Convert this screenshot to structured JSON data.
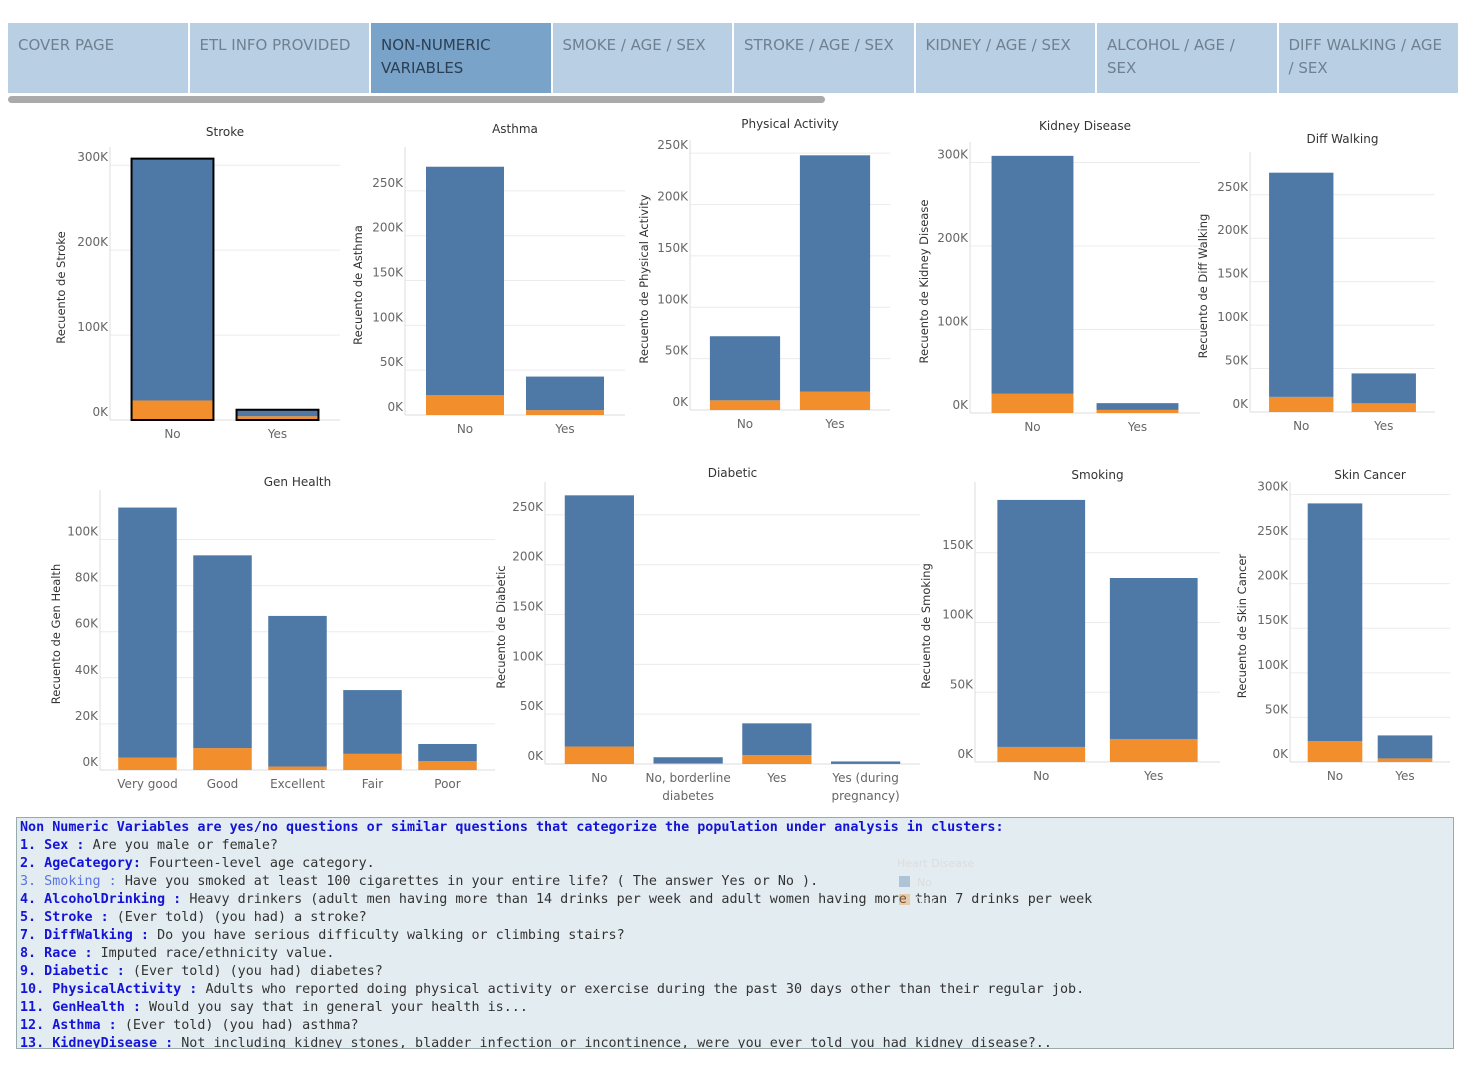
{
  "tabs": [
    "COVER PAGE",
    "ETL INFO PROVIDED",
    "NON-NUMERIC VARIABLES",
    "SMOKE / AGE / SEX",
    "STROKE / AGE / SEX",
    "KIDNEY / AGE / SEX",
    "ALCOHOL / AGE / SEX",
    "DIFF WALKING / AGE / SEX"
  ],
  "active_tab": 2,
  "legend": {
    "title": "Heart Disease",
    "entries": [
      {
        "name": "No",
        "color": "#4e79a7"
      },
      {
        "name": "Yes",
        "color": "#f28e2b"
      }
    ]
  },
  "chart_data": [
    {
      "type": "bar",
      "stacked": true,
      "highlight": true,
      "title": "Stroke",
      "ylabel": "Recuento de Stroke",
      "categories": [
        "No",
        "Yes"
      ],
      "series": [
        {
          "values": [
            284742,
            7680
          ]
        },
        {
          "values": [
            22984,
            4389
          ]
        }
      ],
      "ylim": [
        0,
        312000
      ],
      "yticks": [
        {
          "value": 0,
          "label": "0K"
        },
        {
          "value": 100000,
          "label": "100K"
        },
        {
          "value": 200000,
          "label": "200K"
        },
        {
          "value": 300000,
          "label": "300K"
        }
      ],
      "grid": true
    },
    {
      "type": "bar",
      "stacked": true,
      "title": "Asthma",
      "ylabel": "Recuento de Asthma",
      "categories": [
        "No",
        "Yes"
      ],
      "series": [
        {
          "values": [
            254923,
            37472
          ]
        },
        {
          "values": [
            22000,
            5400
          ]
        }
      ],
      "ylim": [
        0,
        290000
      ],
      "yticks": [
        {
          "value": 0,
          "label": "0K"
        },
        {
          "value": 50000,
          "label": "50K"
        },
        {
          "value": 100000,
          "label": "100K"
        },
        {
          "value": 150000,
          "label": "150K"
        },
        {
          "value": 200000,
          "label": "200K"
        },
        {
          "value": 250000,
          "label": "250K"
        }
      ],
      "grid": true
    },
    {
      "type": "bar",
      "stacked": true,
      "title": "Physical Activity",
      "ylabel": "Recuento de Physical Activity",
      "categories": [
        "No",
        "Yes"
      ],
      "series": [
        {
          "values": [
            62400,
            229900
          ]
        },
        {
          "values": [
            9400,
            18000
          ]
        }
      ],
      "ylim": [
        0,
        255000
      ],
      "yticks": [
        {
          "value": 0,
          "label": "0K"
        },
        {
          "value": 50000,
          "label": "50K"
        },
        {
          "value": 100000,
          "label": "100K"
        },
        {
          "value": 150000,
          "label": "150K"
        },
        {
          "value": 200000,
          "label": "200K"
        },
        {
          "value": 250000,
          "label": "250K"
        }
      ],
      "grid": true
    },
    {
      "type": "bar",
      "stacked": true,
      "title": "Kidney Disease",
      "ylabel": "Recuento de Kidney Disease",
      "categories": [
        "No",
        "Yes"
      ],
      "series": [
        {
          "values": [
            285000,
            8100
          ]
        },
        {
          "values": [
            23000,
            3700
          ]
        }
      ],
      "ylim": [
        0,
        315000
      ],
      "yticks": [
        {
          "value": 0,
          "label": "0K"
        },
        {
          "value": 100000,
          "label": "100K"
        },
        {
          "value": 200000,
          "label": "200K"
        },
        {
          "value": 300000,
          "label": "300K"
        }
      ],
      "grid": true
    },
    {
      "type": "bar",
      "stacked": true,
      "title": "Diff Walking",
      "ylabel": "Recuento de Diff Walking",
      "categories": [
        "No",
        "Yes"
      ],
      "series": [
        {
          "values": [
            258000,
            34400
          ]
        },
        {
          "values": [
            17400,
            10000
          ]
        }
      ],
      "ylim": [
        0,
        290000
      ],
      "yticks": [
        {
          "value": 0,
          "label": "0K"
        },
        {
          "value": 50000,
          "label": "50K"
        },
        {
          "value": 100000,
          "label": "100K"
        },
        {
          "value": 150000,
          "label": "150K"
        },
        {
          "value": 200000,
          "label": "200K"
        },
        {
          "value": 250000,
          "label": "250K"
        }
      ],
      "grid": true
    },
    {
      "type": "bar",
      "stacked": true,
      "title": "Gen Health",
      "ylabel": "Recuento de Gen Health",
      "categories": [
        "Very good",
        "Good",
        "Excellent",
        "Fair",
        "Poor"
      ],
      "series": [
        {
          "values": [
            108458,
            83629,
            65342,
            27677,
            7389
          ]
        },
        {
          "values": [
            5400,
            9500,
            1500,
            7000,
            3900
          ]
        }
      ],
      "ylim": [
        0,
        118000
      ],
      "yticks": [
        {
          "value": 0,
          "label": "0K"
        },
        {
          "value": 20000,
          "label": "20K"
        },
        {
          "value": 40000,
          "label": "40K"
        },
        {
          "value": 60000,
          "label": "60K"
        },
        {
          "value": 80000,
          "label": "80K"
        },
        {
          "value": 100000,
          "label": "100K"
        }
      ],
      "grid": true
    },
    {
      "type": "bar",
      "stacked": true,
      "title": "Diabetic",
      "ylabel": "Recuento de Diabetic",
      "categories": [
        "No",
        "No, borderline diabetes",
        "Yes",
        "Yes (during pregnancy)"
      ],
      "series": [
        {
          "values": [
            252153,
            5981,
            31902,
            2459
          ]
        },
        {
          "values": [
            17500,
            800,
            8900,
            100
          ]
        }
      ],
      "ylim": [
        0,
        275000
      ],
      "yticks": [
        {
          "value": 0,
          "label": "0K"
        },
        {
          "value": 50000,
          "label": "50K"
        },
        {
          "value": 100000,
          "label": "100K"
        },
        {
          "value": 150000,
          "label": "150K"
        },
        {
          "value": 200000,
          "label": "200K"
        },
        {
          "value": 250000,
          "label": "250K"
        }
      ],
      "grid": true
    },
    {
      "type": "bar",
      "stacked": true,
      "title": "Smoking",
      "ylabel": "Recuento de Smoking",
      "categories": [
        "No",
        "Yes"
      ],
      "series": [
        {
          "values": [
            177087,
            115408
          ]
        },
        {
          "values": [
            10800,
            16500
          ]
        }
      ],
      "ylim": [
        0,
        195000
      ],
      "yticks": [
        {
          "value": 0,
          "label": "0K"
        },
        {
          "value": 50000,
          "label": "50K"
        },
        {
          "value": 100000,
          "label": "100K"
        },
        {
          "value": 150000,
          "label": "150K"
        }
      ],
      "grid": true
    },
    {
      "type": "bar",
      "stacked": true,
      "title": "Skin Cancer",
      "ylabel": "Recuento de Skin Cancer",
      "categories": [
        "No",
        "Yes"
      ],
      "series": [
        {
          "values": [
            266676,
            25819
          ]
        },
        {
          "values": [
            23300,
            4000
          ]
        }
      ],
      "ylim": [
        0,
        305000
      ],
      "yticks": [
        {
          "value": 0,
          "label": "0K"
        },
        {
          "value": 50000,
          "label": "50K"
        },
        {
          "value": 100000,
          "label": "100K"
        },
        {
          "value": 150000,
          "label": "150K"
        },
        {
          "value": 200000,
          "label": "200K"
        },
        {
          "value": 250000,
          "label": "250K"
        },
        {
          "value": 300000,
          "label": "300K"
        }
      ],
      "grid": true
    }
  ],
  "notes": {
    "intro": "Non Numeric Variables are yes/no questions or similar questions that categorize the population under analysis in clusters:",
    "items": [
      {
        "label": "1. Sex :",
        "text": "Are you male or female?"
      },
      {
        "label": "2. AgeCategory:",
        "text": "Fourteen-level age category."
      },
      {
        "label": "3. Smoking :",
        "text": "Have you smoked at least 100 cigarettes in your entire life? ( The answer Yes or No )."
      },
      {
        "label": "4. AlcoholDrinking :",
        "text": "Heavy drinkers (adult men having more than 14 drinks per week and adult women having more than 7 drinks per week"
      },
      {
        "label": "5. Stroke :",
        "text": "(Ever told) (you had) a stroke?"
      },
      {
        "label": "7. DiffWalking :",
        "text": "Do you have serious difficulty walking or climbing stairs?"
      },
      {
        "label": "8. Race :",
        "text": "Imputed race/ethnicity value."
      },
      {
        "label": "9. Diabetic :",
        "text": "(Ever told) (you had) diabetes?"
      },
      {
        "label": "10. PhysicalActivity :",
        "text": "Adults who reported doing physical activity or exercise during the past 30 days other than their regular job."
      },
      {
        "label": "11. GenHealth :",
        "text": "Would you say that in general your health is..."
      },
      {
        "label": "12. Asthma :",
        "text": "(Ever told) (you had) asthma?"
      },
      {
        "label": "13. KidneyDisease :",
        "text": "Not including kidney stones, bladder infection or incontinence, were you ever told you had kidney disease?.."
      }
    ]
  }
}
